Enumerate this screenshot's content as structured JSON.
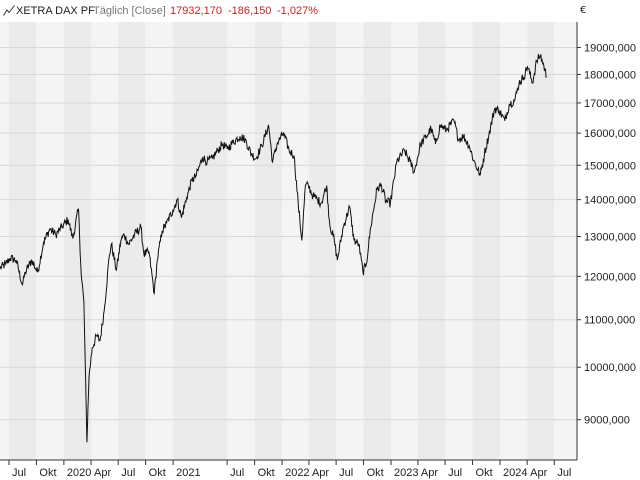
{
  "header": {
    "name": "XETRA DAX PF",
    "period": "Täglich [Close]",
    "last": "17932,170",
    "change": "-186,150",
    "change_pct": "-1,027%",
    "currency": "€"
  },
  "colors": {
    "line": "#111111",
    "negative": "#cc2222",
    "band_light": "#f4f4f4",
    "band_dark": "#ebebeb",
    "grid": "#d8d8d8"
  },
  "chart_data": {
    "type": "line",
    "title": "XETRA DAX PF",
    "xlabel": "",
    "ylabel": "",
    "y_scale": "log",
    "ylim": [
      8300,
      20000
    ],
    "x_range": [
      "2019-06-01",
      "2024-09-15"
    ],
    "grid": true,
    "legend": "none",
    "y_ticks": [
      9000,
      10000,
      11000,
      12000,
      13000,
      14000,
      15000,
      16000,
      17000,
      18000,
      19000
    ],
    "y_tick_labels": [
      "9000,000",
      "10000,000",
      "11000,000",
      "12000,000",
      "13000,000",
      "14000,000",
      "15000,000",
      "16000,000",
      "17000,000",
      "18000,000",
      "19000,000"
    ],
    "x_ticks": [
      {
        "date": "2019-07-01",
        "label": "Jul"
      },
      {
        "date": "2019-10-01",
        "label": "Okt"
      },
      {
        "date": "2020-01-01",
        "label": "2020"
      },
      {
        "date": "2020-04-01",
        "label": "Apr"
      },
      {
        "date": "2020-07-01",
        "label": "Jul"
      },
      {
        "date": "2020-10-01",
        "label": "Okt"
      },
      {
        "date": "2021-01-01",
        "label": "2021"
      },
      {
        "date": "2021-07-01",
        "label": "Jul"
      },
      {
        "date": "2021-10-01",
        "label": "Okt"
      },
      {
        "date": "2022-01-01",
        "label": "2022"
      },
      {
        "date": "2022-04-01",
        "label": "Apr"
      },
      {
        "date": "2022-07-01",
        "label": "Jul"
      },
      {
        "date": "2022-10-01",
        "label": "Okt"
      },
      {
        "date": "2023-01-01",
        "label": "2023"
      },
      {
        "date": "2023-04-01",
        "label": "Apr"
      },
      {
        "date": "2023-07-01",
        "label": "Jul"
      },
      {
        "date": "2023-10-01",
        "label": "Okt"
      },
      {
        "date": "2024-01-01",
        "label": "2024"
      },
      {
        "date": "2024-04-01",
        "label": "Apr"
      },
      {
        "date": "2024-07-01",
        "label": "Jul"
      }
    ],
    "series": [
      {
        "x": [
          "2019-06-01",
          "2019-06-20",
          "2019-07-05",
          "2019-07-25",
          "2019-08-15",
          "2019-08-25",
          "2019-09-15",
          "2019-10-05",
          "2019-10-25",
          "2019-11-15",
          "2019-12-05",
          "2019-12-25",
          "2020-01-15",
          "2020-01-31",
          "2020-02-19",
          "2020-02-28",
          "2020-03-08",
          "2020-03-18",
          "2020-03-25",
          "2020-04-05",
          "2020-04-20",
          "2020-05-01",
          "2020-05-15",
          "2020-06-01",
          "2020-06-08",
          "2020-06-25",
          "2020-07-10",
          "2020-07-21",
          "2020-08-05",
          "2020-08-25",
          "2020-09-15",
          "2020-09-25",
          "2020-10-12",
          "2020-10-30",
          "2020-11-09",
          "2020-11-25",
          "2020-12-10",
          "2020-12-31",
          "2021-01-15",
          "2021-01-29",
          "2021-02-15",
          "2021-03-05",
          "2021-03-20",
          "2021-04-10",
          "2021-04-25",
          "2021-05-12",
          "2021-05-30",
          "2021-06-15",
          "2021-07-01",
          "2021-07-20",
          "2021-08-13",
          "2021-08-30",
          "2021-09-20",
          "2021-10-05",
          "2021-10-25",
          "2021-11-17",
          "2021-11-30",
          "2021-12-15",
          "2022-01-05",
          "2022-01-25",
          "2022-02-10",
          "2022-02-24",
          "2022-03-08",
          "2022-03-20",
          "2022-03-30",
          "2022-04-15",
          "2022-04-30",
          "2022-05-12",
          "2022-05-30",
          "2022-06-10",
          "2022-06-25",
          "2022-07-05",
          "2022-07-25",
          "2022-08-15",
          "2022-08-30",
          "2022-09-15",
          "2022-09-29",
          "2022-10-10",
          "2022-10-25",
          "2022-11-15",
          "2022-11-30",
          "2022-12-15",
          "2022-12-30",
          "2023-01-20",
          "2023-02-15",
          "2023-03-06",
          "2023-03-20",
          "2023-04-10",
          "2023-04-30",
          "2023-05-15",
          "2023-05-30",
          "2023-06-15",
          "2023-07-05",
          "2023-07-31",
          "2023-08-15",
          "2023-09-01",
          "2023-09-20",
          "2023-10-05",
          "2023-10-27",
          "2023-11-10",
          "2023-11-25",
          "2023-12-14",
          "2023-12-29",
          "2024-01-17",
          "2024-02-01",
          "2024-02-20",
          "2024-03-05",
          "2024-03-20",
          "2024-04-02",
          "2024-04-19",
          "2024-05-03",
          "2024-05-15",
          "2024-05-27",
          "2024-06-05"
        ],
        "y": [
          12200,
          12300,
          12450,
          12400,
          11800,
          12100,
          12400,
          12100,
          12850,
          13200,
          13050,
          13250,
          13450,
          12950,
          13750,
          12050,
          11400,
          8600,
          9800,
          10400,
          10650,
          10550,
          11200,
          12500,
          12800,
          12150,
          12900,
          13050,
          12800,
          13050,
          13250,
          12550,
          12600,
          11600,
          12400,
          13150,
          13350,
          13700,
          14000,
          13500,
          14050,
          14550,
          14700,
          15250,
          15100,
          15200,
          15450,
          15650,
          15500,
          15700,
          15900,
          15800,
          15350,
          15200,
          15600,
          16250,
          15100,
          15650,
          16000,
          15450,
          15300,
          13900,
          12900,
          14400,
          14400,
          14100,
          14000,
          13900,
          14400,
          13300,
          12900,
          12400,
          13250,
          13800,
          12900,
          12800,
          12100,
          12300,
          13250,
          14300,
          14400,
          13950,
          13900,
          15100,
          15450,
          15100,
          14800,
          15650,
          15900,
          16150,
          15650,
          16250,
          16100,
          16400,
          15800,
          15900,
          15600,
          15150,
          14700,
          15350,
          15950,
          16800,
          16750,
          16400,
          16950,
          17100,
          17700,
          17900,
          18300,
          17700,
          18500,
          18700,
          18300,
          17932
        ]
      }
    ]
  }
}
